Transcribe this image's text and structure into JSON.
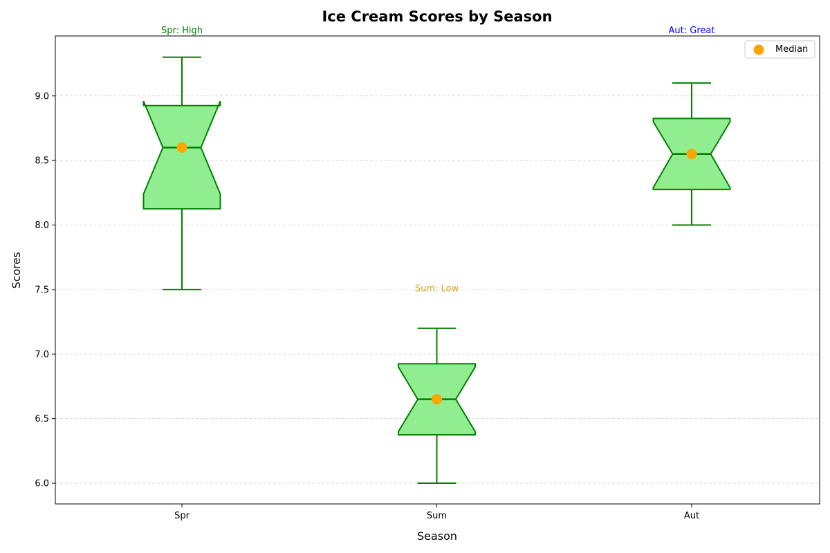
{
  "chart_data": {
    "type": "box",
    "title": "Ice Cream Scores by Season",
    "xlabel": "Season",
    "ylabel": "Scores",
    "categories": [
      "Spr",
      "Sum",
      "Aut"
    ],
    "ylim": [
      5.83,
      9.45
    ],
    "yticks": [
      "6.0",
      "6.5",
      "7.0",
      "7.5",
      "8.0",
      "8.5",
      "9.0"
    ],
    "grid": "y",
    "notched": true,
    "boxes": [
      {
        "category": "Spr",
        "whisker_low": 7.5,
        "q1": 8.125,
        "median": 8.6,
        "q3": 8.925,
        "whisker_high": 9.3,
        "notch_low": 8.24,
        "notch_high": 8.96
      },
      {
        "category": "Sum",
        "whisker_low": 6.0,
        "q1": 6.375,
        "median": 6.65,
        "q3": 6.925,
        "whisker_high": 7.2,
        "notch_low": 6.4,
        "notch_high": 6.9
      },
      {
        "category": "Aut",
        "whisker_low": 8.0,
        "q1": 8.275,
        "median": 8.55,
        "q3": 8.825,
        "whisker_high": 9.1,
        "notch_low": 8.29,
        "notch_high": 8.8
      }
    ],
    "medians": [
      8.6,
      6.65,
      8.55
    ],
    "annotations": [
      {
        "category": "Spr",
        "text": "Spr: High",
        "y": 9.51,
        "color": "#008000"
      },
      {
        "category": "Sum",
        "text": "Sum: Low",
        "y": 7.51,
        "color": "#daa520"
      },
      {
        "category": "Aut",
        "text": "Aut: Great",
        "y": 9.51,
        "color": "#0000ff"
      }
    ],
    "legend": {
      "position": "top-right",
      "entries": [
        {
          "label": "Median",
          "color": "#ffa500"
        }
      ]
    },
    "colors": {
      "box_fill": "#90ee90",
      "box_edge": "#008000",
      "median_marker": "#ffa500",
      "grid": "#cccccc"
    }
  }
}
